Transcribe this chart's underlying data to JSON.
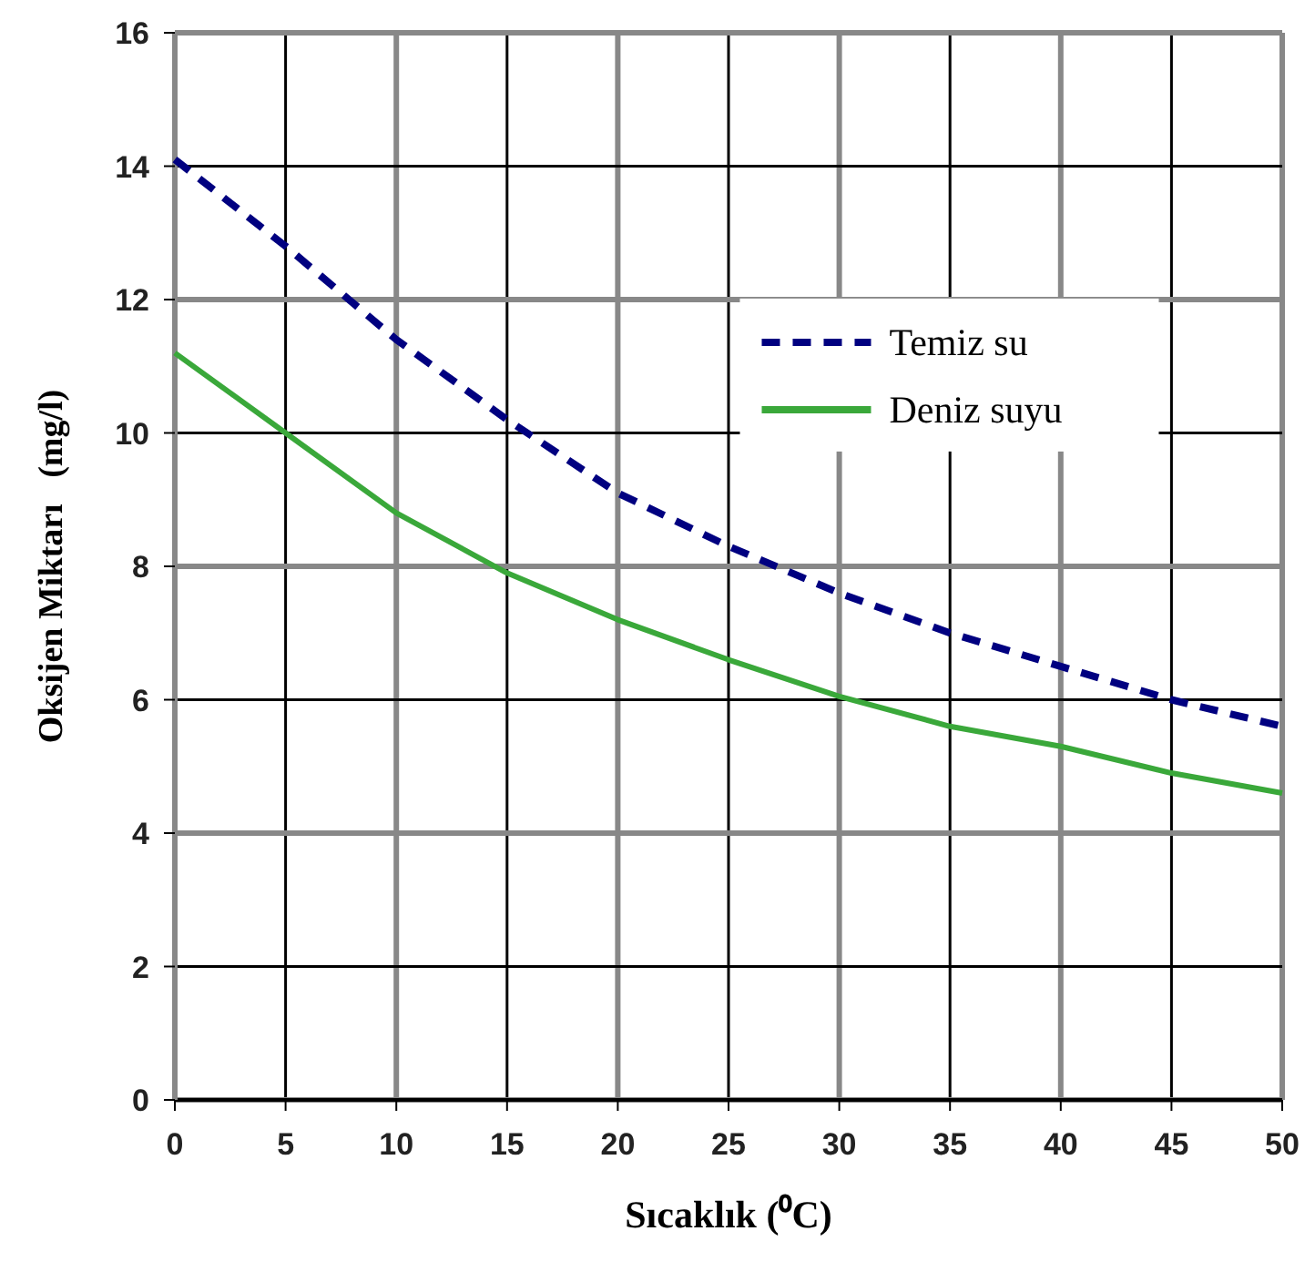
{
  "chart_data": {
    "type": "line",
    "xlabel": "Sıcaklık (⁰C)",
    "ylabel": "Oksijen Miktarı   (mg/l)",
    "x": [
      0,
      5,
      10,
      15,
      20,
      25,
      30,
      35,
      40,
      45,
      50
    ],
    "series": [
      {
        "name": "Temiz su",
        "color": "#000080",
        "line_style": "dashed",
        "values": [
          14.1,
          12.8,
          11.4,
          10.2,
          9.1,
          8.3,
          7.6,
          7.0,
          6.5,
          6.0,
          5.6
        ]
      },
      {
        "name": "Deniz suyu",
        "color": "#3aa83a",
        "line_style": "solid",
        "values": [
          11.2,
          10.0,
          8.8,
          7.9,
          7.2,
          6.6,
          6.05,
          5.6,
          5.3,
          4.9,
          4.6
        ]
      }
    ],
    "xlim": [
      0,
      50
    ],
    "xticks": [
      0,
      5,
      10,
      15,
      20,
      25,
      30,
      35,
      40,
      45,
      50
    ],
    "ylim": [
      0,
      16
    ],
    "yticks": [
      0,
      2,
      4,
      6,
      8,
      10,
      12,
      14,
      16
    ],
    "grid": true,
    "legend": "top right",
    "marker": "none"
  }
}
